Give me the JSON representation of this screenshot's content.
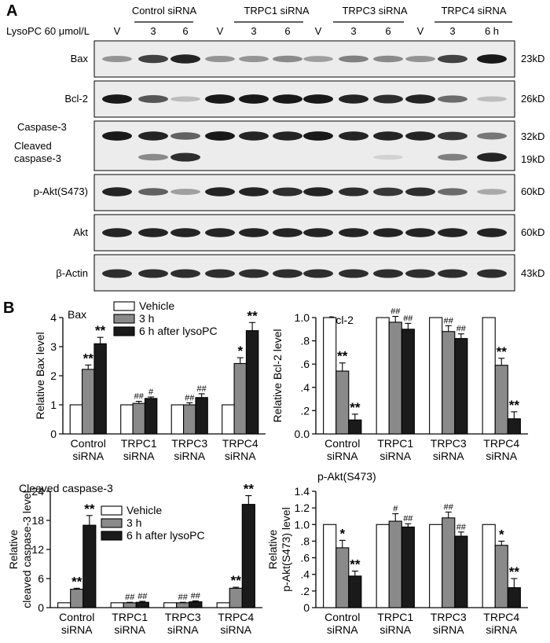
{
  "panel_a": {
    "letter": "A",
    "groups": [
      "Control siRNA",
      "TRPC1 siRNA",
      "TRPC3 siRNA",
      "TRPC4 siRNA"
    ],
    "treatment_label": "LysoPC 60 μmol/L",
    "lanes": [
      "V",
      "3",
      "6",
      "V",
      "3",
      "6",
      "V",
      "3",
      "6",
      "V",
      "3",
      "6 h"
    ],
    "blots": [
      {
        "label": "Bax",
        "size": "23kD",
        "intensity": [
          0.35,
          0.75,
          0.9,
          0.35,
          0.35,
          0.4,
          0.3,
          0.45,
          0.4,
          0.35,
          0.75,
          0.95
        ]
      },
      {
        "label": "Bcl-2",
        "size": "26kD",
        "intensity": [
          0.95,
          0.65,
          0.15,
          0.95,
          0.95,
          0.95,
          0.95,
          0.9,
          0.85,
          0.9,
          0.55,
          0.15
        ]
      },
      {
        "label": "Caspase-3",
        "size": "32kD",
        "intensity": [
          0.95,
          0.9,
          0.6,
          0.95,
          0.9,
          0.9,
          0.95,
          0.9,
          0.9,
          0.9,
          0.8,
          0.5
        ]
      },
      {
        "label": "Cleaved caspase-3",
        "size": "19kD",
        "intensity": [
          0,
          0.4,
          0.85,
          0,
          0,
          0,
          0,
          0,
          0.05,
          0,
          0.45,
          0.9
        ]
      },
      {
        "label": "p-Akt(S473)",
        "size": "60kD",
        "intensity": [
          0.9,
          0.6,
          0.3,
          0.9,
          0.9,
          0.85,
          0.9,
          0.85,
          0.8,
          0.85,
          0.55,
          0.25
        ]
      },
      {
        "label": "Akt",
        "size": "60kD",
        "intensity": [
          0.9,
          0.9,
          0.9,
          0.9,
          0.9,
          0.9,
          0.9,
          0.9,
          0.9,
          0.9,
          0.9,
          0.9
        ]
      },
      {
        "label": "β-Actin",
        "size": "43kD",
        "intensity": [
          0.85,
          0.85,
          0.85,
          0.85,
          0.85,
          0.85,
          0.85,
          0.85,
          0.85,
          0.85,
          0.85,
          0.85
        ]
      }
    ]
  },
  "panel_b_letter": "B",
  "legend_entries": [
    "Vehicle",
    "3 h",
    "6 h after lysoPC"
  ],
  "series_colors": {
    "vehicle": "#ffffff",
    "h3": "#8a8a8a",
    "h6": "#1a1a1a"
  },
  "chart_data": [
    {
      "type": "bar",
      "title": "Bax",
      "ylabel": "Relative Bax level",
      "categories": [
        "Control siRNA",
        "TRPC1 siRNA",
        "TRPC3 siRNA",
        "TRPC4 siRNA"
      ],
      "ylim": [
        0,
        4
      ],
      "yticks": [
        "0",
        "1",
        "2",
        "3",
        "4"
      ],
      "series": [
        {
          "name": "Vehicle",
          "values": [
            1,
            1,
            1,
            1
          ],
          "errors": [
            0,
            0,
            0,
            0
          ],
          "marks": [
            "",
            "",
            "",
            ""
          ]
        },
        {
          "name": "3 h",
          "values": [
            2.22,
            1.05,
            1.0,
            2.42
          ],
          "errors": [
            0.15,
            0.07,
            0.07,
            0.2
          ],
          "marks": [
            "**",
            "##",
            "##",
            "*"
          ]
        },
        {
          "name": "6 h after lysoPC",
          "values": [
            3.1,
            1.22,
            1.25,
            3.55
          ],
          "errors": [
            0.22,
            0.05,
            0.13,
            0.28
          ],
          "marks": [
            "**",
            "#",
            "##",
            "**"
          ]
        }
      ],
      "legend": "top"
    },
    {
      "type": "bar",
      "title": "Bcl-2",
      "ylabel": "Relative Bcl-2 level",
      "categories": [
        "Control siRNA",
        "TRPC1 siRNA",
        "TRPC3 siRNA",
        "TRPC4 siRNA"
      ],
      "ylim": [
        0,
        1.0
      ],
      "yticks": [
        "0.0",
        ".2",
        ".4",
        ".6",
        ".8",
        "1.0"
      ],
      "series": [
        {
          "name": "Vehicle",
          "values": [
            1,
            1,
            1,
            1
          ],
          "errors": [
            0,
            0,
            0,
            0
          ],
          "marks": [
            "",
            "",
            "",
            ""
          ]
        },
        {
          "name": "3 h",
          "values": [
            0.54,
            0.96,
            0.88,
            0.59
          ],
          "errors": [
            0.07,
            0.05,
            0.05,
            0.06
          ],
          "marks": [
            "**",
            "##",
            "##",
            "**"
          ]
        },
        {
          "name": "6 h after lysoPC",
          "values": [
            0.12,
            0.9,
            0.82,
            0.13
          ],
          "errors": [
            0.05,
            0.05,
            0.04,
            0.06
          ],
          "marks": [
            "**",
            "##",
            "##",
            "**"
          ]
        }
      ]
    },
    {
      "type": "bar",
      "title": "Cleaved caspase-3",
      "ylabel": "Relative cleaved caspase-3 level",
      "categories": [
        "Control siRNA",
        "TRPC1 siRNA",
        "TRPC3 siRNA",
        "TRPC4 siRNA"
      ],
      "ylim": [
        0,
        24
      ],
      "yticks": [
        "0",
        "6",
        "12",
        "18",
        "24"
      ],
      "series": [
        {
          "name": "Vehicle",
          "values": [
            1,
            1,
            1,
            1
          ],
          "errors": [
            0,
            0,
            0,
            0
          ],
          "marks": [
            "",
            "",
            "",
            ""
          ]
        },
        {
          "name": "3 h",
          "values": [
            3.8,
            1.0,
            1.0,
            4.0
          ],
          "errors": [
            0.2,
            0.1,
            0.1,
            0.2
          ],
          "marks": [
            "**",
            "##",
            "##",
            "**"
          ]
        },
        {
          "name": "6 h after lysoPC",
          "values": [
            17.0,
            1.1,
            1.2,
            21.3
          ],
          "errors": [
            2.0,
            0.2,
            0.2,
            1.8
          ],
          "marks": [
            "**",
            "##",
            "##",
            "**"
          ]
        }
      ],
      "legend": "top"
    },
    {
      "type": "bar",
      "title": "p-Akt(S473)",
      "ylabel": "Relative p-Akt(S473) level",
      "categories": [
        "Control siRNA",
        "TRPC1 siRNA",
        "TRPC3 siRNA",
        "TRPC4 siRNA"
      ],
      "ylim": [
        0,
        1.4
      ],
      "yticks": [
        "0",
        ".2",
        ".4",
        ".6",
        ".8",
        "1.0",
        "1.2",
        "1.4"
      ],
      "series": [
        {
          "name": "Vehicle",
          "values": [
            1,
            1,
            1,
            1
          ],
          "errors": [
            0,
            0,
            0,
            0
          ],
          "marks": [
            "",
            "",
            "",
            ""
          ]
        },
        {
          "name": "3 h",
          "values": [
            0.72,
            1.04,
            1.08,
            0.75
          ],
          "errors": [
            0.09,
            0.09,
            0.07,
            0.05
          ],
          "marks": [
            "*",
            "#",
            "##",
            "*"
          ]
        },
        {
          "name": "6 h after lysoPC",
          "values": [
            0.38,
            0.97,
            0.86,
            0.24
          ],
          "errors": [
            0.06,
            0.04,
            0.05,
            0.11
          ],
          "marks": [
            "**",
            "##",
            "##",
            "**"
          ]
        }
      ]
    }
  ]
}
